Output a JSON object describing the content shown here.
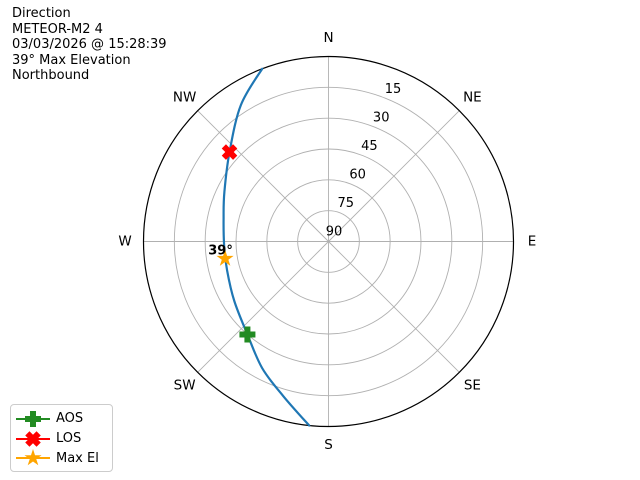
{
  "header": {
    "lines": [
      "Direction",
      "METEOR-M2 4",
      "03/03/2026 @ 15:28:39",
      "39° Max Elevation",
      "Northbound"
    ]
  },
  "legend": {
    "items": [
      {
        "id": "aos",
        "label": "AOS",
        "marker": "plus",
        "color": "#228B22"
      },
      {
        "id": "los",
        "label": "LOS",
        "marker": "x",
        "color": "#FF0000"
      },
      {
        "id": "max-el",
        "label": "Max El",
        "marker": "star",
        "color": "#FFA500"
      }
    ]
  },
  "chart_data": {
    "type": "line",
    "projection": "polar-azimuth-elevation",
    "title": "Direction",
    "subtitle_lines": [
      "METEOR-M2 4",
      "03/03/2026 @ 15:28:39",
      "39° Max Elevation",
      "Northbound"
    ],
    "compass_labels": [
      "N",
      "NE",
      "E",
      "SE",
      "S",
      "SW",
      "W",
      "NW"
    ],
    "elevation_ticks": [
      15,
      30,
      45,
      60,
      75,
      90
    ],
    "elevation_range": [
      0,
      90
    ],
    "tick_label_azimuth_deg": 22.5,
    "grid": true,
    "colors": {
      "track": "#1F77B4",
      "grid": "#B0B0B0",
      "outline": "#000000",
      "text": "#000000"
    },
    "track_az_el": [
      [
        186.0,
        0.0
      ],
      [
        196.4,
        11.7
      ],
      [
        207.7,
        20.5
      ],
      [
        221.1,
        30.0
      ],
      [
        237.7,
        35.8
      ],
      [
        254.1,
        38.7
      ],
      [
        268.1,
        39.2
      ],
      [
        282.6,
        37.7
      ],
      [
        295.5,
        33.9
      ],
      [
        312.1,
        25.1
      ],
      [
        327.3,
        11.1
      ],
      [
        339.0,
        0.0
      ]
    ],
    "markers": [
      {
        "name": "AOS",
        "az": 221.1,
        "el": 30.0,
        "marker": "plus",
        "color": "#228B22"
      },
      {
        "name": "LOS",
        "az": 312.1,
        "el": 25.1,
        "marker": "x",
        "color": "#FF0000"
      },
      {
        "name": "Max El",
        "az": 260.6,
        "el": 39.0,
        "marker": "star",
        "color": "#FFA500",
        "annotation": "39°"
      }
    ]
  }
}
